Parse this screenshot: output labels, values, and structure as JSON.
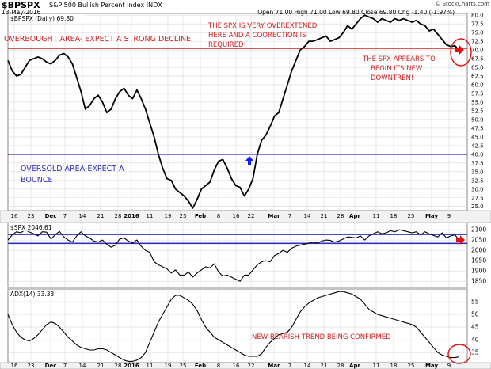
{
  "header": {
    "symbol": "$BPSPX",
    "name": "S&P 500 Bullish Percent Index",
    "exchange": "INDX",
    "date": "13-May-2016",
    "ohlc": "Open 71.00  High 71.00  Low 69.80  Close 69.80  Chg -1.40 (-1.97%)",
    "ohlc_close_change": "▼",
    "watermark": "© StockCharts.com"
  },
  "colors": {
    "price_line": "#000000",
    "support_line": "#3030c0",
    "resistance_line": "#d02020",
    "annotation_text": "#d02020",
    "oversold_text": "#3030c0",
    "grid": "#d8d8d8",
    "arrow_up": "#1a1aff",
    "arrow_right": "#e01010"
  },
  "annotations": {
    "overbought": "OVERBOUGHT AREA- EXPECT A STRONG DECLINE",
    "overextended": [
      "THE SPX IS VERY OVEREXTENED",
      "HERE AND A COORECTION IS",
      "REQUIRED!"
    ],
    "downtrend": [
      "THE SPX APPEARS TO",
      "BEGIN ITS NEW",
      "DOWNTREN!"
    ],
    "oversold": [
      "OVERSOLD AREA-EXPECT A",
      "BOUNCE"
    ],
    "bearish": "NEW BEARISH TREND BEING CONFIRMED"
  },
  "chart_data": [
    {
      "type": "line",
      "legend": "$BPSPX (Daily) 69.80",
      "x_ticks": [
        "16",
        "23",
        "Dec",
        "7",
        "14",
        "21",
        "28",
        "2016",
        "11",
        "19",
        "25",
        "Feb",
        "8",
        "16",
        "22",
        "Mar",
        "7",
        "14",
        "21",
        "28",
        "Apr",
        "11",
        "18",
        "25",
        "May",
        "9"
      ],
      "ylim": [
        23.8,
        80.5
      ],
      "y_ticks": [
        25.0,
        27.5,
        30.0,
        32.5,
        35.0,
        37.5,
        40.0,
        42.5,
        45.0,
        47.5,
        50.0,
        52.5,
        55.0,
        57.5,
        60.0,
        62.5,
        65.0,
        67.5,
        70.0,
        72.5,
        75.0,
        77.5,
        80.0
      ],
      "reference_lines": [
        70.5,
        40.0
      ],
      "values": [
        67,
        64,
        62.5,
        63,
        65,
        67,
        67.5,
        68,
        67.5,
        66.5,
        66,
        67,
        68.5,
        69,
        68,
        66,
        62,
        58,
        53,
        54,
        56,
        57,
        55,
        52,
        53,
        56,
        58,
        59,
        57,
        56,
        58.5,
        56,
        53,
        49,
        45,
        40,
        36,
        33,
        32.5,
        30,
        29,
        28,
        26.5,
        24.5,
        27,
        30,
        31,
        32,
        35.5,
        38,
        38.5,
        36,
        33,
        31,
        30.5,
        28,
        30,
        33,
        40,
        44,
        45.5,
        48,
        51,
        52,
        56,
        60,
        64,
        67,
        70,
        71,
        72.5,
        72.5,
        73,
        73.5,
        74,
        72.5,
        73,
        73.5,
        75,
        77,
        76,
        77.5,
        79,
        80,
        79.5,
        79,
        78,
        79,
        78.5,
        78,
        79,
        78.5,
        79,
        78.5,
        78,
        78.5,
        77.5,
        77,
        75.5,
        76,
        74.5,
        73,
        71.5,
        71,
        71.2,
        69.8
      ]
    },
    {
      "type": "line",
      "legend": "$SPX 2046.61",
      "ylim": [
        1820,
        2135
      ],
      "y_ticks": [
        1850,
        1900,
        1950,
        2000,
        2050,
        2100
      ],
      "reference_lines": [
        2077,
        2034
      ],
      "values": [
        2050,
        2075,
        2090,
        2085,
        2100,
        2089,
        2080,
        2070,
        2090,
        2088,
        2055,
        2075,
        2092,
        2065,
        2050,
        2040,
        2070,
        2090,
        2070,
        2060,
        2045,
        2040,
        2050,
        2030,
        2015,
        2025,
        2055,
        2060,
        2045,
        2035,
        2050,
        2020,
        2000,
        1990,
        1945,
        1930,
        1920,
        1910,
        1890,
        1905,
        1880,
        1880,
        1895,
        1870,
        1890,
        1905,
        1920,
        1915,
        1935,
        1895,
        1875,
        1880,
        1870,
        1860,
        1850,
        1880,
        1880,
        1905,
        1930,
        1945,
        1950,
        1945,
        1975,
        1985,
        2000,
        1990,
        2010,
        2020,
        2025,
        2030,
        2035,
        2040,
        2035,
        2045,
        2050,
        2048,
        2040,
        2045,
        2055,
        2065,
        2063,
        2060,
        2070,
        2050,
        2070,
        2080,
        2090,
        2080,
        2085,
        2095,
        2090,
        2100,
        2095,
        2090,
        2085,
        2090,
        2075,
        2090,
        2080,
        2072,
        2065,
        2085,
        2060,
        2070,
        2075,
        2046.6
      ]
    },
    {
      "type": "line",
      "legend": "ADX(14) 33.33",
      "ylim": [
        31,
        60
      ],
      "y_ticks": [
        35,
        40,
        45,
        50,
        55
      ],
      "values": [
        50,
        46,
        43,
        41,
        40,
        39.5,
        40.5,
        42,
        44,
        46,
        47,
        46.5,
        45,
        43,
        41,
        39.5,
        38,
        37,
        36.5,
        36,
        36,
        36.5,
        36.5,
        36,
        35,
        34,
        33,
        32,
        31.5,
        31.5,
        32,
        33,
        35,
        39,
        43,
        47,
        50,
        53,
        56,
        57.5,
        57.5,
        56.5,
        55.5,
        54,
        51.5,
        48,
        45,
        43,
        41,
        40,
        39,
        38,
        37,
        36,
        35,
        34,
        33.5,
        33.5,
        33.5,
        34.5,
        37,
        39,
        40.5,
        42,
        42.5,
        43,
        45,
        48,
        51,
        53,
        54.5,
        55.5,
        56.5,
        57,
        57.5,
        58,
        58.5,
        59,
        59,
        58.5,
        58,
        57,
        56,
        54,
        52,
        51,
        50,
        49.5,
        49,
        48.5,
        48,
        47.5,
        47,
        46.5,
        46,
        45,
        43,
        41,
        39,
        37,
        35,
        34,
        33.5,
        33,
        33,
        33.3
      ]
    }
  ]
}
